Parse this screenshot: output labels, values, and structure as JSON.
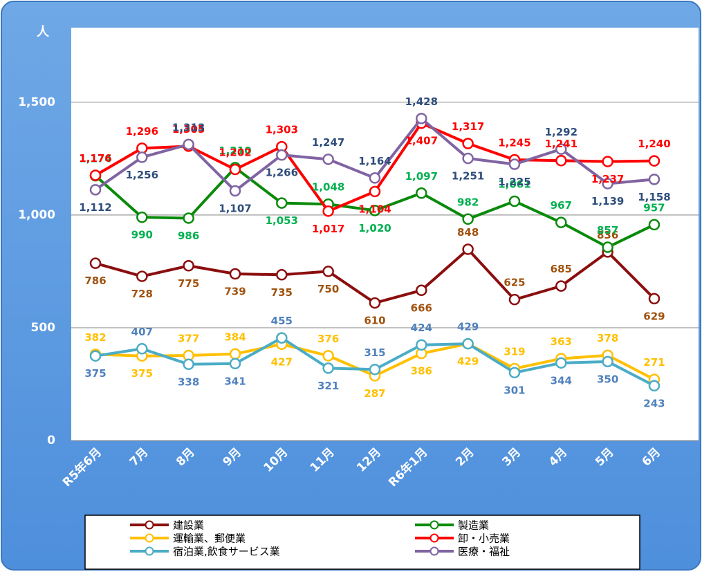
{
  "chart_data": {
    "type": "line",
    "y_axis_label": "人",
    "categories": [
      "R5年6月",
      "7月",
      "8月",
      "9月",
      "10月",
      "11月",
      "12月",
      "R6年1月",
      "2月",
      "3月",
      "4月",
      "5月",
      "6月"
    ],
    "ylim": [
      0,
      1800
    ],
    "yticks": [
      0,
      500,
      {
        "value": 1000,
        "label": "1,000"
      },
      {
        "value": 1500,
        "label": "1,500"
      }
    ],
    "grid": true,
    "legend": "bottom",
    "series": [
      {
        "name": "建設業",
        "color": "#8b0e0e",
        "label_color": "#a0520f",
        "values": [
          786,
          728,
          775,
          739,
          735,
          750,
          610,
          666,
          848,
          625,
          685,
          836,
          629
        ],
        "value_labels": [
          "786",
          "728",
          "775",
          "739",
          "735",
          "750",
          "610",
          "666",
          "848",
          "625",
          "685",
          "836",
          "629"
        ]
      },
      {
        "name": "製造業",
        "color": "#0a8a0a",
        "label_color": "#00b050",
        "values": [
          1174,
          990,
          986,
          1210,
          1053,
          1048,
          1020,
          1097,
          982,
          1061,
          967,
          857,
          957
        ],
        "value_labels": [
          "1,174",
          "990",
          "986",
          "1,210",
          "1,053",
          "1,048",
          "1,020",
          "1,097",
          "982",
          "1,061",
          "967",
          "857",
          "957"
        ]
      },
      {
        "name": "運輸業、郵便業",
        "color": "#ffc000",
        "label_color": "#ffc000",
        "values": [
          382,
          375,
          377,
          384,
          427,
          376,
          287,
          386,
          429,
          319,
          363,
          378,
          271
        ],
        "value_labels": [
          "382",
          "375",
          "377",
          "384",
          "427",
          "376",
          "287",
          "386",
          "429",
          "319",
          "363",
          "378",
          "271"
        ]
      },
      {
        "name": "卸・小売業",
        "color": "#ff0000",
        "label_color": "#ff0000",
        "values": [
          1176,
          1296,
          1305,
          1202,
          1303,
          1017,
          1104,
          1407,
          1317,
          1245,
          1241,
          1237,
          1240
        ],
        "value_labels": [
          "1,176",
          "1,296",
          "1,305",
          "1,202",
          "1,303",
          "1,017",
          "1,104",
          "1,407",
          "1,317",
          "1,245",
          "1,241",
          "1,237",
          "1,240"
        ]
      },
      {
        "name": "宿泊業,飲食サービス業",
        "color": "#4bacc6",
        "label_color": "#4f81bd",
        "values": [
          375,
          407,
          338,
          341,
          455,
          321,
          315,
          424,
          429,
          301,
          344,
          350,
          243
        ],
        "value_labels": [
          "375",
          "407",
          "338",
          "341",
          "455",
          "321",
          "315",
          "424",
          "429",
          "301",
          "344",
          "350",
          "243"
        ]
      },
      {
        "name": "医療・福祉",
        "color": "#8064a2",
        "label_color": "#2e4d7b",
        "values": [
          1112,
          1256,
          1313,
          1107,
          1266,
          1247,
          1164,
          1428,
          1251,
          1225,
          1292,
          1139,
          1158
        ],
        "value_labels": [
          "1,112",
          "1,256",
          "1,313",
          "1,107",
          "1,266",
          "1,247",
          "1,164",
          "1,428",
          "1,251",
          "1,225",
          "1,292",
          "1,139",
          "1,158"
        ]
      }
    ]
  }
}
